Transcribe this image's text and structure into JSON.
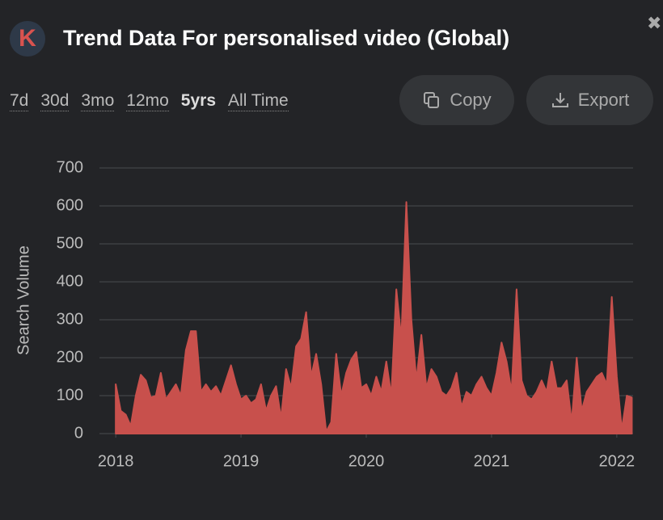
{
  "header": {
    "logo": "K",
    "title": "Trend Data For personalised video (Global)"
  },
  "ranges": [
    "7d",
    "30d",
    "3mo",
    "12mo",
    "5yrs",
    "All Time"
  ],
  "active_range": 4,
  "buttons": [
    "Copy",
    "Export"
  ],
  "chart_data": {
    "type": "area",
    "y_label": "Search Volume",
    "color": "#c8504c",
    "grid": true,
    "xlim": [
      2017.87,
      2022.13
    ],
    "xticks": [
      2018,
      2019,
      2020,
      2021,
      2022
    ],
    "ylim": [
      0,
      700
    ],
    "yticks": [
      0,
      100,
      200,
      300,
      400,
      500,
      600,
      700
    ],
    "x": [
      2018.0,
      2018.04,
      2018.08,
      2018.12,
      2018.16,
      2018.2,
      2018.24,
      2018.28,
      2018.32,
      2018.36,
      2018.4,
      2018.44,
      2018.48,
      2018.52,
      2018.56,
      2018.6,
      2018.64,
      2018.68,
      2018.72,
      2018.76,
      2018.8,
      2018.84,
      2018.88,
      2018.92,
      2018.96,
      2019.0,
      2019.04,
      2019.08,
      2019.12,
      2019.16,
      2019.2,
      2019.24,
      2019.28,
      2019.32,
      2019.36,
      2019.4,
      2019.44,
      2019.48,
      2019.52,
      2019.56,
      2019.6,
      2019.64,
      2019.68,
      2019.72,
      2019.76,
      2019.8,
      2019.84,
      2019.88,
      2019.92,
      2019.96,
      2020.0,
      2020.04,
      2020.08,
      2020.12,
      2020.16,
      2020.2,
      2020.24,
      2020.28,
      2020.32,
      2020.36,
      2020.4,
      2020.44,
      2020.48,
      2020.52,
      2020.56,
      2020.6,
      2020.64,
      2020.68,
      2020.72,
      2020.76,
      2020.8,
      2020.84,
      2020.88,
      2020.92,
      2020.96,
      2021.0,
      2021.04,
      2021.08,
      2021.12,
      2021.16,
      2021.2,
      2021.24,
      2021.28,
      2021.32,
      2021.36,
      2021.4,
      2021.44,
      2021.48,
      2021.52,
      2021.56,
      2021.6,
      2021.64,
      2021.68,
      2021.72,
      2021.76,
      2021.8,
      2021.84,
      2021.88,
      2021.92,
      2021.96,
      2022.0,
      2022.04,
      2022.08,
      2022.12
    ],
    "values": [
      130,
      60,
      50,
      20,
      100,
      155,
      140,
      95,
      100,
      160,
      90,
      110,
      130,
      100,
      220,
      270,
      270,
      110,
      130,
      110,
      125,
      100,
      140,
      180,
      130,
      90,
      100,
      80,
      90,
      130,
      60,
      100,
      125,
      40,
      170,
      120,
      230,
      250,
      320,
      150,
      210,
      130,
      5,
      30,
      210,
      100,
      160,
      195,
      215,
      120,
      130,
      100,
      150,
      110,
      190,
      100,
      380,
      250,
      610,
      300,
      140,
      260,
      120,
      170,
      150,
      110,
      100,
      120,
      160,
      70,
      110,
      100,
      130,
      150,
      120,
      100,
      160,
      240,
      190,
      110,
      380,
      140,
      100,
      90,
      110,
      140,
      110,
      190,
      120,
      120,
      140,
      30,
      200,
      60,
      110,
      130,
      150,
      160,
      130,
      360,
      150,
      10,
      100,
      95
    ]
  }
}
